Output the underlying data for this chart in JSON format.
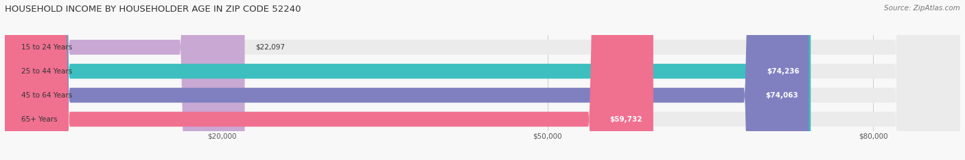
{
  "title": "HOUSEHOLD INCOME BY HOUSEHOLDER AGE IN ZIP CODE 52240",
  "source": "Source: ZipAtlas.com",
  "categories": [
    "15 to 24 Years",
    "25 to 44 Years",
    "45 to 64 Years",
    "65+ Years"
  ],
  "values": [
    22097,
    74236,
    74063,
    59732
  ],
  "bar_colors": [
    "#c9a8d4",
    "#3dbfbf",
    "#8080c0",
    "#f07090"
  ],
  "bar_bg_color": "#ebebeb",
  "value_labels": [
    "$22,097",
    "$74,236",
    "$74,063",
    "$59,732"
  ],
  "x_ticks": [
    20000,
    50000,
    80000
  ],
  "x_tick_labels": [
    "$20,000",
    "$50,000",
    "$80,000"
  ],
  "xmax": 88000,
  "xmin": 0,
  "figsize": [
    14.06,
    2.33
  ],
  "dpi": 100
}
